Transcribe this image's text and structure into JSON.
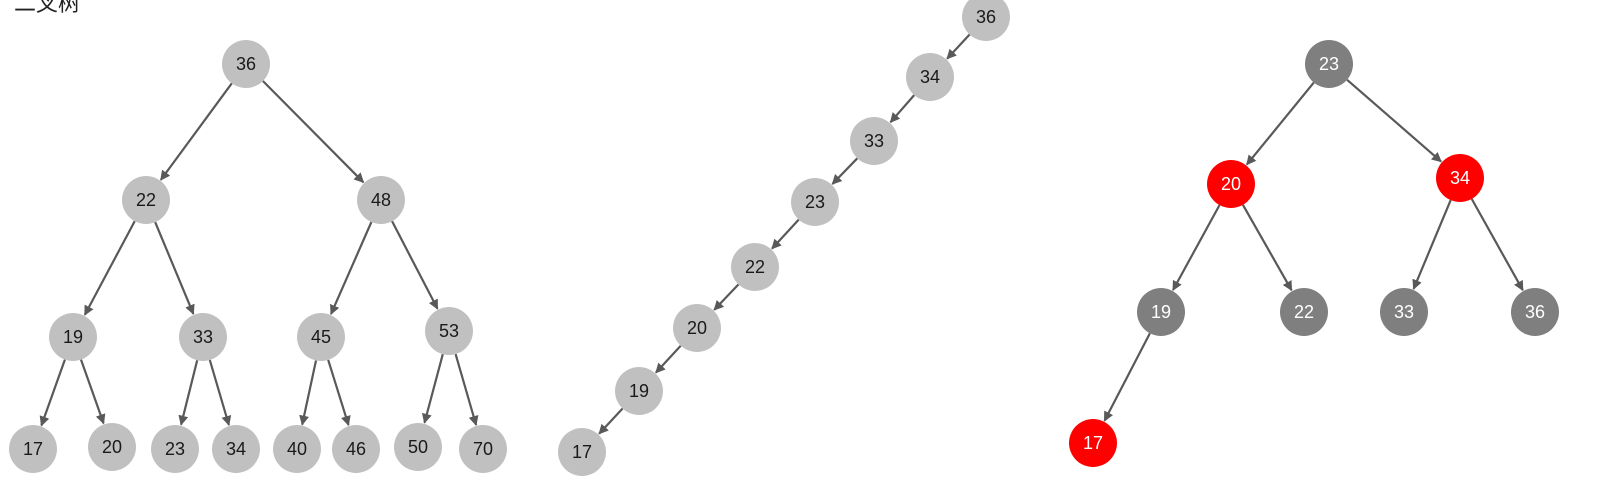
{
  "caption": "二叉树",
  "colors": {
    "light_node": "#c0c0c0",
    "dark_node": "#7f7f7f",
    "red_node": "#ff0000",
    "edge": "#595959",
    "dark_text": "#1a1a1a",
    "light_text": "#ffffff"
  },
  "trees": [
    {
      "name": "balanced-bst",
      "nodes": [
        {
          "id": "a36",
          "label": "36",
          "style": "light"
        },
        {
          "id": "a22",
          "label": "22",
          "style": "light"
        },
        {
          "id": "a48",
          "label": "48",
          "style": "light"
        },
        {
          "id": "a19",
          "label": "19",
          "style": "light"
        },
        {
          "id": "a33",
          "label": "33",
          "style": "light"
        },
        {
          "id": "a45",
          "label": "45",
          "style": "light"
        },
        {
          "id": "a53",
          "label": "53",
          "style": "light"
        },
        {
          "id": "a17",
          "label": "17",
          "style": "light"
        },
        {
          "id": "a20",
          "label": "20",
          "style": "light"
        },
        {
          "id": "a23",
          "label": "23",
          "style": "light"
        },
        {
          "id": "a34",
          "label": "34",
          "style": "light"
        },
        {
          "id": "a40",
          "label": "40",
          "style": "light"
        },
        {
          "id": "a46",
          "label": "46",
          "style": "light"
        },
        {
          "id": "a50",
          "label": "50",
          "style": "light"
        },
        {
          "id": "a70",
          "label": "70",
          "style": "light"
        }
      ],
      "edges": [
        [
          "a36",
          "a22"
        ],
        [
          "a36",
          "a48"
        ],
        [
          "a22",
          "a19"
        ],
        [
          "a22",
          "a33"
        ],
        [
          "a48",
          "a45"
        ],
        [
          "a48",
          "a53"
        ],
        [
          "a19",
          "a17"
        ],
        [
          "a19",
          "a20"
        ],
        [
          "a33",
          "a23"
        ],
        [
          "a33",
          "a34"
        ],
        [
          "a45",
          "a40"
        ],
        [
          "a45",
          "a46"
        ],
        [
          "a53",
          "a50"
        ],
        [
          "a53",
          "a70"
        ]
      ]
    },
    {
      "name": "degenerate-bst",
      "nodes": [
        {
          "id": "b36",
          "label": "36",
          "style": "light"
        },
        {
          "id": "b34",
          "label": "34",
          "style": "light"
        },
        {
          "id": "b33",
          "label": "33",
          "style": "light"
        },
        {
          "id": "b23",
          "label": "23",
          "style": "light"
        },
        {
          "id": "b22",
          "label": "22",
          "style": "light"
        },
        {
          "id": "b20",
          "label": "20",
          "style": "light"
        },
        {
          "id": "b19",
          "label": "19",
          "style": "light"
        },
        {
          "id": "b17",
          "label": "17",
          "style": "light"
        }
      ],
      "edges": [
        [
          "b36",
          "b34"
        ],
        [
          "b34",
          "b33"
        ],
        [
          "b33",
          "b23"
        ],
        [
          "b23",
          "b22"
        ],
        [
          "b22",
          "b20"
        ],
        [
          "b20",
          "b19"
        ],
        [
          "b19",
          "b17"
        ]
      ]
    },
    {
      "name": "red-black-tree",
      "nodes": [
        {
          "id": "c23",
          "label": "23",
          "style": "dark"
        },
        {
          "id": "c20",
          "label": "20",
          "style": "red"
        },
        {
          "id": "c34",
          "label": "34",
          "style": "red"
        },
        {
          "id": "c19",
          "label": "19",
          "style": "dark"
        },
        {
          "id": "c22",
          "label": "22",
          "style": "dark"
        },
        {
          "id": "c33",
          "label": "33",
          "style": "dark"
        },
        {
          "id": "c36",
          "label": "36",
          "style": "dark"
        },
        {
          "id": "c17",
          "label": "17",
          "style": "red"
        }
      ],
      "edges": [
        [
          "c23",
          "c20"
        ],
        [
          "c23",
          "c34"
        ],
        [
          "c20",
          "c19"
        ],
        [
          "c20",
          "c22"
        ],
        [
          "c34",
          "c33"
        ],
        [
          "c34",
          "c36"
        ],
        [
          "c19",
          "c17"
        ]
      ]
    }
  ]
}
